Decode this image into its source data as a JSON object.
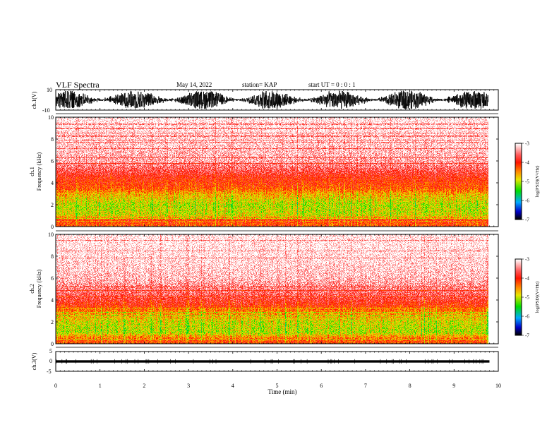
{
  "header": {
    "title": "VLF Spectra",
    "date": "May 14, 2022",
    "station": "station= KAP",
    "start_ut": "start  UT =   0 : 0  : 1"
  },
  "panels": {
    "ch1_waveform": {
      "ylabel": "ch.1(V)",
      "ymax_label": "10",
      "ymin_label": "-10"
    },
    "ch1_spectrogram": {
      "ylabel_line1": "ch.1",
      "ylabel_line2": "Frequency  (kHz)"
    },
    "ch2_spectrogram": {
      "ylabel_line1": "ch.2",
      "ylabel_line2": "Frequency  (kHz)"
    },
    "ch3_waveform": {
      "ylabel": "ch.3(V)",
      "ymax_label": "5",
      "ymid_label": "0",
      "ymin_label": "-5"
    }
  },
  "xaxis": {
    "label": "Time  (min)"
  },
  "colorbars": [
    {
      "label": "log(PSD)(V²/Hz)",
      "ticks": [
        "-3",
        "-4",
        "-5",
        "-6",
        "-7"
      ]
    },
    {
      "label": "log(PSD)(V²/Hz)",
      "ticks": [
        "-3",
        "-4",
        "-5",
        "-6",
        "-7"
      ]
    }
  ],
  "chart_data": [
    {
      "type": "line",
      "name": "ch.1 waveform",
      "ylabel": "ch.1(V)",
      "xlim": [
        0,
        10
      ],
      "ylim": [
        -10,
        10
      ],
      "x_end": 9.8,
      "amplitude_range": [
        -9,
        9
      ]
    },
    {
      "type": "heatmap",
      "name": "ch.1 spectrogram",
      "xlabel": "Time (min)",
      "ylabel": "Frequency (kHz)",
      "xlim": [
        0,
        10
      ],
      "ylim": [
        0,
        10
      ],
      "yticks": [
        0,
        2,
        4,
        6,
        8,
        10
      ],
      "x_end": 9.8,
      "colorbar_range": [
        -7,
        -3
      ],
      "psd_profile": [
        {
          "f": 0.2,
          "psd": -4.2
        },
        {
          "f": 0.5,
          "psd": -4.0
        },
        {
          "f": 1.0,
          "psd": -4.9
        },
        {
          "f": 2.0,
          "psd": -5.0
        },
        {
          "f": 3.0,
          "psd": -4.6
        },
        {
          "f": 3.5,
          "psd": -4.2
        },
        {
          "f": 4.5,
          "psd": -3.95
        },
        {
          "f": 5.0,
          "psd": -3.7
        },
        {
          "f": 6.0,
          "psd": -3.3
        },
        {
          "f": 8.0,
          "psd": -3.1
        },
        {
          "f": 10.0,
          "psd": -3.0
        }
      ]
    },
    {
      "type": "heatmap",
      "name": "ch.2 spectrogram",
      "xlabel": "Time (min)",
      "ylabel": "Frequency (kHz)",
      "xlim": [
        0,
        10
      ],
      "ylim": [
        0,
        10
      ],
      "yticks": [
        0,
        2,
        4,
        6,
        8,
        10
      ],
      "x_end": 9.8,
      "colorbar_range": [
        -7,
        -3
      ],
      "psd_profile": [
        {
          "f": 0.2,
          "psd": -4.2
        },
        {
          "f": 0.5,
          "psd": -4.4
        },
        {
          "f": 1.0,
          "psd": -5.0
        },
        {
          "f": 2.0,
          "psd": -4.9
        },
        {
          "f": 3.0,
          "psd": -4.4
        },
        {
          "f": 3.5,
          "psd": -4.0
        },
        {
          "f": 4.5,
          "psd": -3.6
        },
        {
          "f": 6.0,
          "psd": -3.2
        },
        {
          "f": 8.0,
          "psd": -3.05
        },
        {
          "f": 10.0,
          "psd": -3.0
        }
      ]
    },
    {
      "type": "line",
      "name": "ch.3 waveform",
      "ylabel": "ch.3(V)",
      "xlim": [
        0,
        10
      ],
      "ylim": [
        -5,
        5
      ],
      "x_end": 9.8,
      "level": 0,
      "amplitude_range": [
        -0.6,
        0.6
      ]
    }
  ]
}
